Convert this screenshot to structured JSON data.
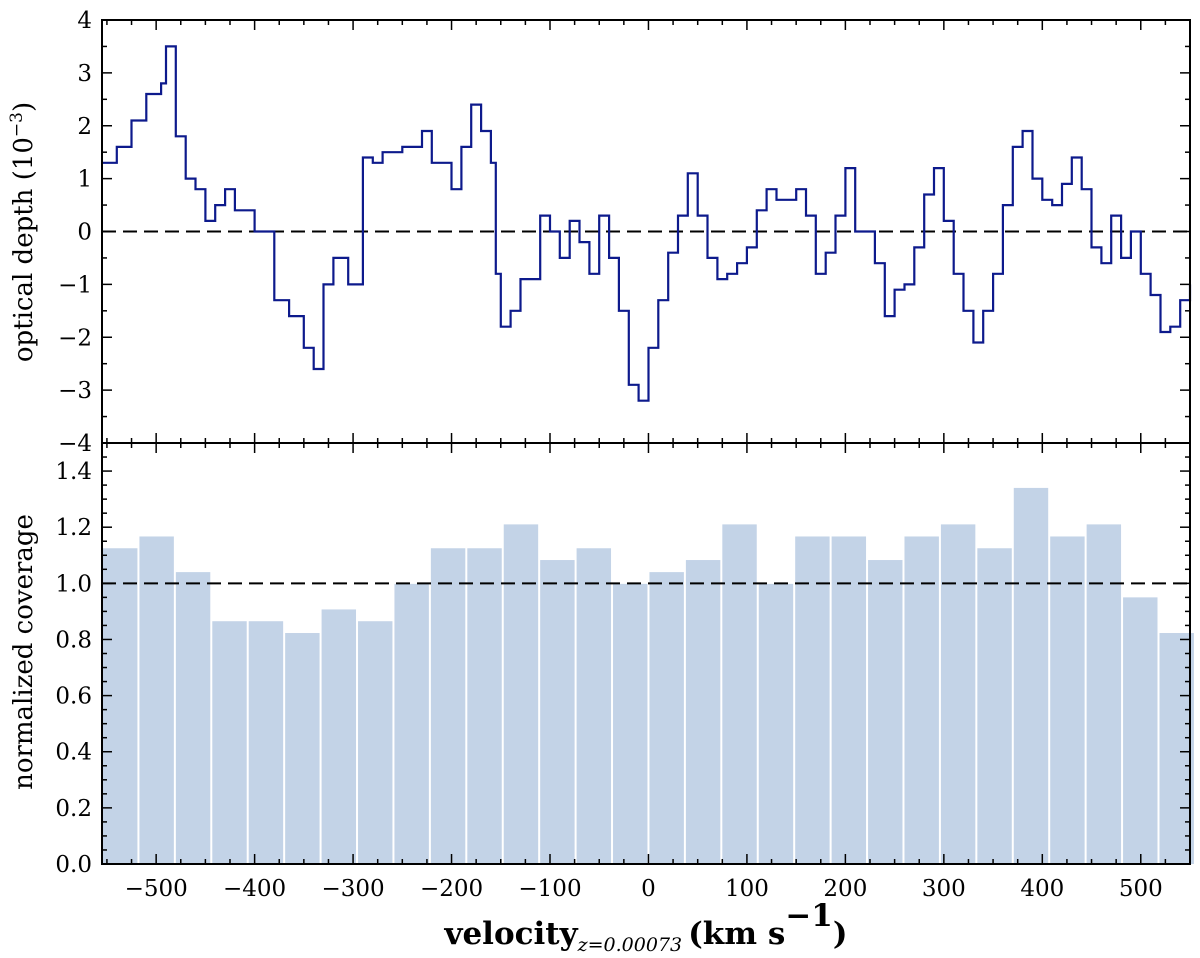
{
  "colors": {
    "line": "#0d1a8c",
    "bar": "#c3d3e7",
    "bar_edge": "#ffffff",
    "reference": "#000000"
  },
  "x_axis": {
    "label_main": "velocity",
    "label_sub": "z=0.00073",
    "label_unit": "(km s",
    "label_unit_exp": "−1",
    "label_close": ")",
    "range": [
      -555,
      550
    ],
    "ticks": [
      -500,
      -400,
      -300,
      -200,
      -100,
      0,
      100,
      200,
      300,
      400,
      500
    ],
    "tick_labels": [
      "−500",
      "−400",
      "−300",
      "−200",
      "−100",
      "0",
      "100",
      "200",
      "300",
      "400",
      "500"
    ]
  },
  "chart_data": [
    {
      "type": "line",
      "ylabel": "optical depth (10",
      "ylabel_exp": "−3",
      "ylabel_close": ")",
      "ylim": [
        -4,
        4
      ],
      "yticks": [
        -4,
        -3,
        -2,
        -1,
        0,
        1,
        2,
        3,
        4
      ],
      "ytick_labels": [
        "−4",
        "−3",
        "−2",
        "−1",
        "0",
        "1",
        "2",
        "3",
        "4"
      ],
      "reference_line": 0,
      "step": true,
      "x": [
        -555,
        -540,
        -525,
        -510,
        -495,
        -490,
        -480,
        -470,
        -460,
        -450,
        -440,
        -430,
        -420,
        -400,
        -380,
        -365,
        -350,
        -340,
        -330,
        -320,
        -305,
        -290,
        -280,
        -270,
        -250,
        -230,
        -220,
        -200,
        -190,
        -180,
        -170,
        -160,
        -155,
        -150,
        -140,
        -130,
        -110,
        -100,
        -90,
        -80,
        -70,
        -60,
        -50,
        -40,
        -30,
        -20,
        -10,
        0,
        10,
        20,
        30,
        40,
        50,
        60,
        70,
        80,
        90,
        100,
        110,
        120,
        130,
        150,
        160,
        170,
        180,
        190,
        200,
        210,
        230,
        240,
        250,
        260,
        270,
        280,
        290,
        300,
        310,
        320,
        330,
        340,
        350,
        360,
        370,
        380,
        390,
        400,
        410,
        420,
        430,
        440,
        450,
        460,
        470,
        480,
        490,
        500,
        510,
        520,
        530,
        540,
        550
      ],
      "y": [
        1.3,
        1.6,
        2.1,
        2.6,
        2.8,
        3.5,
        1.8,
        1.0,
        0.8,
        0.2,
        0.5,
        0.8,
        0.4,
        0.0,
        -1.3,
        -1.6,
        -2.2,
        -2.6,
        -1.0,
        -0.5,
        -1.0,
        1.4,
        1.3,
        1.5,
        1.6,
        1.9,
        1.3,
        0.8,
        1.6,
        2.4,
        1.9,
        1.3,
        -0.8,
        -1.8,
        -1.5,
        -0.9,
        0.3,
        0.0,
        -0.5,
        0.2,
        -0.2,
        -0.8,
        0.3,
        -0.5,
        -1.5,
        -2.9,
        -3.2,
        -2.2,
        -1.3,
        -0.4,
        0.3,
        1.1,
        0.3,
        -0.5,
        -0.9,
        -0.8,
        -0.6,
        -0.3,
        0.4,
        0.8,
        0.6,
        0.8,
        0.3,
        -0.8,
        -0.4,
        0.3,
        1.2,
        0.0,
        -0.6,
        -1.6,
        -1.1,
        -1.0,
        -0.3,
        0.7,
        1.2,
        0.2,
        -0.8,
        -1.5,
        -2.1,
        -1.5,
        -0.8,
        0.5,
        1.6,
        1.9,
        1.0,
        0.6,
        0.5,
        0.9,
        1.4,
        0.8,
        -0.3,
        -0.6,
        0.3,
        -0.5,
        0.0,
        -0.8,
        -1.2,
        -1.9,
        -1.8,
        -1.3,
        -1.0
      ]
    },
    {
      "type": "bar",
      "ylabel": "normalized coverage",
      "ylim": [
        0.0,
        1.5
      ],
      "yticks": [
        0.0,
        0.2,
        0.4,
        0.6,
        0.8,
        1.0,
        1.2,
        1.4
      ],
      "ytick_labels": [
        "0.0",
        "0.2",
        "0.4",
        "0.6",
        "0.8",
        "1.0",
        "1.2",
        "1.4"
      ],
      "reference_line": 1.0,
      "bin_edges": [
        -555,
        -518,
        -481,
        -444,
        -407,
        -370,
        -333,
        -296,
        -259,
        -222,
        -185,
        -148,
        -111,
        -74,
        -37,
        0,
        37,
        74,
        111,
        148,
        185,
        222,
        259,
        296,
        333,
        370,
        407,
        444,
        481,
        518,
        555
      ],
      "values": [
        1.125,
        1.167,
        1.04,
        0.865,
        0.865,
        0.823,
        0.907,
        0.865,
        0.998,
        1.125,
        1.125,
        1.21,
        1.083,
        1.125,
        0.998,
        1.04,
        1.083,
        1.21,
        0.998,
        1.167,
        1.167,
        1.083,
        1.167,
        1.21,
        1.125,
        1.34,
        1.167,
        1.21,
        0.95,
        0.823
      ]
    }
  ]
}
